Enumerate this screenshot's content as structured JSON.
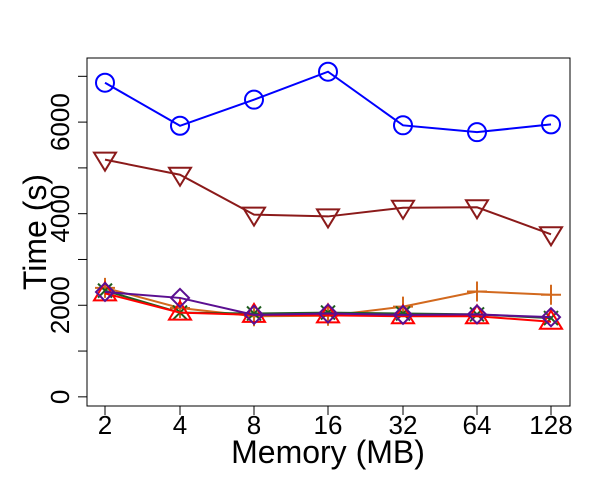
{
  "chart_data": {
    "type": "line",
    "title": "",
    "xlabel": "Memory (MB)",
    "ylabel": "Time (s)",
    "categories": [
      "2",
      "4",
      "8",
      "16",
      "32",
      "64",
      "128"
    ],
    "ylim": [
      -200,
      7400
    ],
    "yticks": [
      0,
      2000,
      4000,
      6000
    ],
    "ytick_labels": [
      "0",
      "2000",
      "4000",
      "6000"
    ],
    "grid": false,
    "legend": "none",
    "series": [
      {
        "name": "circle-series",
        "color": "#0000ff",
        "marker": "circle",
        "values": [
          6860,
          5920,
          6490,
          7100,
          5930,
          5780,
          5950
        ]
      },
      {
        "name": "triangle-down-series",
        "color": "#8b1a1a",
        "marker": "triangle-down",
        "values": [
          5180,
          4850,
          3980,
          3940,
          4130,
          4140,
          3550
        ]
      },
      {
        "name": "plus-series",
        "color": "#d2691e",
        "marker": "plus",
        "values": [
          2380,
          1940,
          1760,
          1770,
          1970,
          2300,
          2230
        ]
      },
      {
        "name": "x-series",
        "color": "#1f5f1f",
        "marker": "x",
        "values": [
          2320,
          1840,
          1820,
          1840,
          1820,
          1800,
          1720
        ]
      },
      {
        "name": "triangle-up-series",
        "color": "#ff0000",
        "marker": "triangle-up",
        "values": [
          2260,
          1840,
          1790,
          1780,
          1760,
          1760,
          1640
        ]
      },
      {
        "name": "diamond-series",
        "color": "#5b0f91",
        "marker": "diamond",
        "values": [
          2290,
          2160,
          1790,
          1820,
          1790,
          1800,
          1740
        ]
      }
    ]
  }
}
